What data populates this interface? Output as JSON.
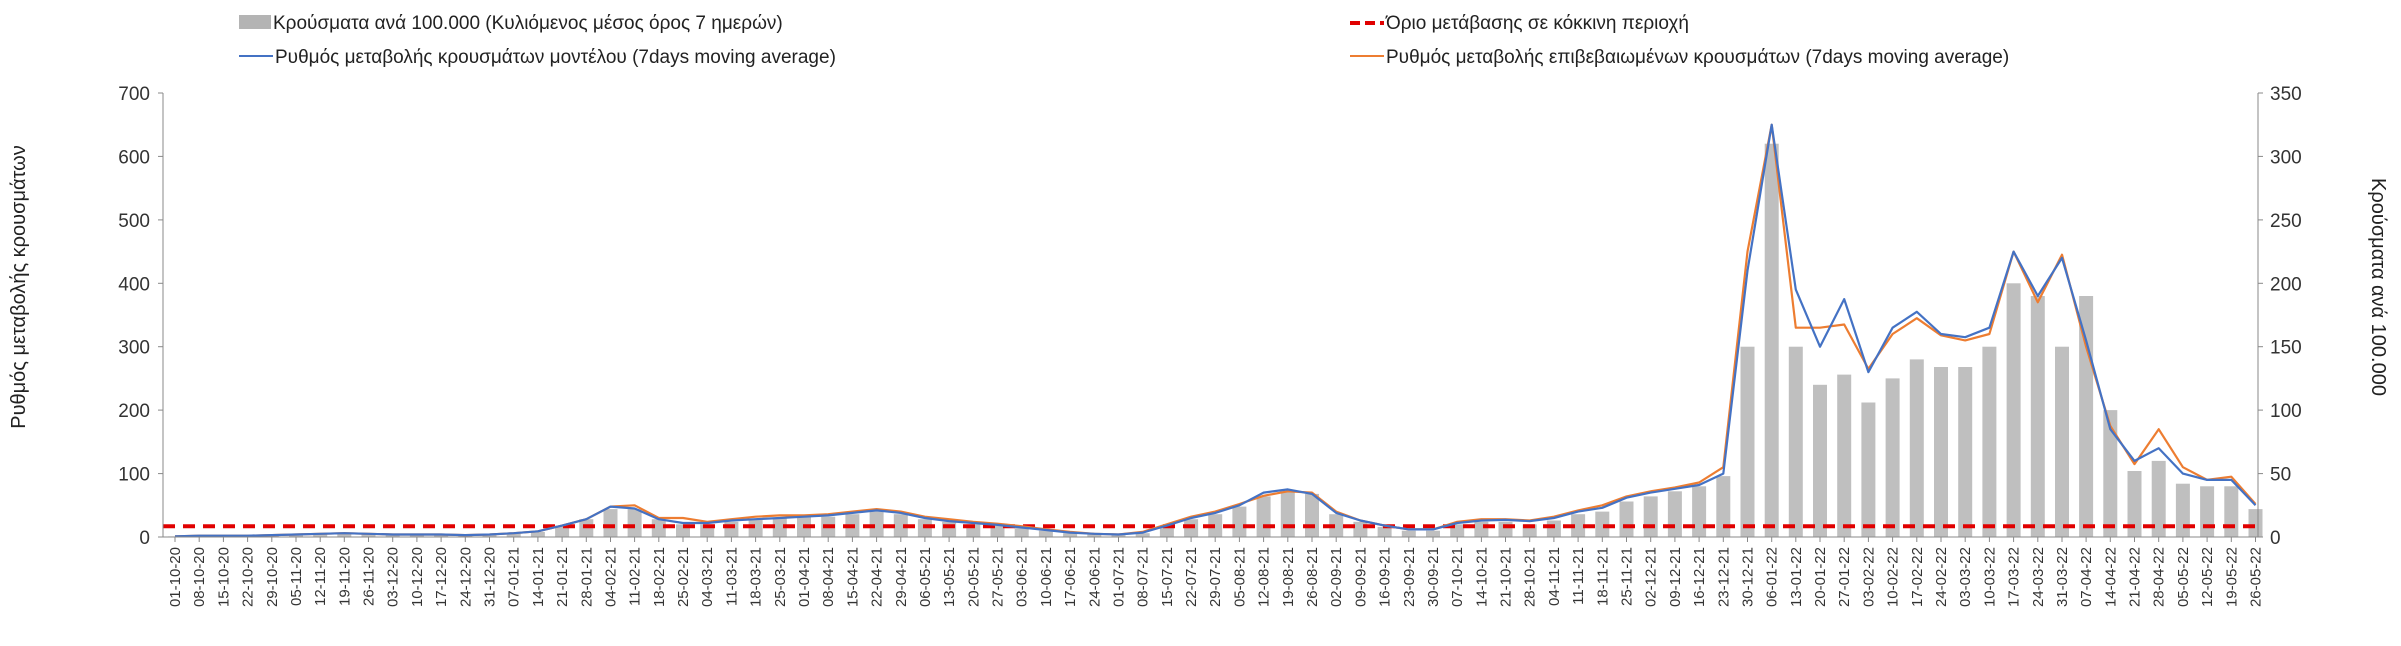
{
  "chart_data": {
    "type": "bar",
    "title": "",
    "xlabel": "",
    "ylabel_left": "Ρυθμός μεταβολής κρουσμάτων",
    "ylabel_right": "Κρούσματα ανά 100.000",
    "ylim_left": [
      0,
      700
    ],
    "ylim_right": [
      0,
      350
    ],
    "yticks_left": [
      "0",
      "100",
      "200",
      "300",
      "400",
      "500",
      "600",
      "700"
    ],
    "yticks_right": [
      "0",
      "50",
      "100",
      "150",
      "200",
      "250",
      "300",
      "350"
    ],
    "grid": false,
    "legend_placement": "top",
    "date_labels": [
      "01-10-20",
      "08-10-20",
      "15-10-20",
      "22-10-20",
      "29-10-20",
      "05-11-20",
      "12-11-20",
      "19-11-20",
      "26-11-20",
      "03-12-20",
      "10-12-20",
      "17-12-20",
      "24-12-20",
      "31-12-20",
      "07-01-21",
      "14-01-21",
      "21-01-21",
      "28-01-21",
      "04-02-21",
      "11-02-21",
      "18-02-21",
      "25-02-21",
      "04-03-21",
      "11-03-21",
      "18-03-21",
      "25-03-21",
      "01-04-21",
      "08-04-21",
      "15-04-21",
      "22-04-21",
      "29-04-21",
      "06-05-21",
      "13-05-21",
      "20-05-21",
      "27-05-21",
      "03-06-21",
      "10-06-21",
      "17-06-21",
      "24-06-21",
      "01-07-21",
      "08-07-21",
      "15-07-21",
      "22-07-21",
      "29-07-21",
      "05-08-21",
      "12-08-21",
      "19-08-21",
      "26-08-21",
      "02-09-21",
      "09-09-21",
      "16-09-21",
      "23-09-21",
      "30-09-21",
      "07-10-21",
      "14-10-21",
      "21-10-21",
      "28-10-21",
      "04-11-21",
      "11-11-21",
      "18-11-21",
      "25-11-21",
      "02-12-21",
      "09-12-21",
      "16-12-21",
      "23-12-21",
      "30-12-21",
      "06-01-22",
      "13-01-22",
      "20-01-22",
      "27-01-22",
      "03-02-22",
      "10-02-22",
      "17-02-22",
      "24-02-22",
      "03-03-22",
      "10-03-22",
      "17-03-22",
      "24-03-22",
      "31-03-22",
      "07-04-22",
      "14-04-22",
      "21-04-22",
      "28-04-22",
      "05-05-22",
      "12-05-22",
      "19-05-22",
      "26-05-22"
    ],
    "series": [
      {
        "name": "Κρούσματα ανά 100.000 (Κυλιόμενος μέσος όρος 7 ημερών)",
        "kind": "bar",
        "axis": "right",
        "color": "#b4b4b4",
        "values": [
          0.5,
          1,
          1,
          1,
          1.5,
          2,
          2,
          3,
          2,
          1.5,
          1.5,
          1.5,
          1,
          1.5,
          2.5,
          4,
          9,
          14,
          22,
          22,
          14,
          10,
          10,
          12,
          14,
          15,
          16,
          16,
          18,
          20,
          18,
          14,
          12,
          10,
          9,
          7,
          5,
          3,
          2,
          1.5,
          3,
          8,
          14,
          18,
          24,
          32,
          36,
          34,
          18,
          12,
          8,
          5,
          5,
          10,
          12,
          12,
          10,
          13,
          18,
          20,
          28,
          32,
          36,
          40,
          48,
          150,
          310,
          150,
          120,
          128,
          106,
          125,
          140,
          134,
          134,
          150,
          200,
          190,
          150,
          190,
          100,
          52,
          60,
          42,
          40,
          40,
          22
        ]
      },
      {
        "name": "Ρυθμός μεταβολής κρουσμάτων μοντέλου (7days moving average)",
        "kind": "line",
        "axis": "left",
        "color": "#4472c4",
        "values": [
          1,
          2,
          2,
          2,
          3,
          4,
          5,
          6,
          5,
          4,
          4,
          4,
          3,
          4,
          6,
          9,
          18,
          28,
          48,
          45,
          28,
          22,
          22,
          26,
          28,
          30,
          32,
          34,
          38,
          42,
          38,
          30,
          25,
          22,
          19,
          15,
          11,
          7,
          5,
          4,
          7,
          18,
          30,
          38,
          50,
          70,
          75,
          68,
          38,
          26,
          18,
          12,
          12,
          22,
          26,
          27,
          25,
          30,
          40,
          46,
          62,
          70,
          76,
          82,
          100,
          420,
          650,
          390,
          300,
          375,
          260,
          330,
          355,
          320,
          315,
          330,
          450,
          380,
          440,
          310,
          170,
          120,
          140,
          100,
          90,
          90,
          50
        ]
      },
      {
        "name": "Ρυθμός μεταβολής επιβεβαιωμένων κρουσμάτων (7days moving average)",
        "kind": "line",
        "axis": "left",
        "color": "#ed7d31",
        "values": [
          1,
          2,
          2,
          2,
          3,
          4,
          5,
          6,
          5,
          4,
          4,
          4,
          3,
          4,
          6,
          9,
          18,
          28,
          48,
          50,
          30,
          30,
          24,
          28,
          32,
          34,
          34,
          36,
          40,
          44,
          40,
          32,
          28,
          24,
          21,
          17,
          12,
          8,
          5,
          4,
          8,
          20,
          32,
          40,
          52,
          65,
          72,
          70,
          40,
          26,
          18,
          12,
          12,
          24,
          28,
          28,
          26,
          32,
          42,
          50,
          64,
          72,
          78,
          86,
          110,
          450,
          650,
          330,
          330,
          335,
          265,
          320,
          345,
          318,
          310,
          320,
          450,
          370,
          445,
          300,
          175,
          115,
          170,
          110,
          90,
          95,
          52
        ]
      },
      {
        "name": "Όριο μετάβασης σε κόκκινη περιοχή",
        "kind": "threshold",
        "axis": "left",
        "color": "#e00000",
        "value": 17
      }
    ]
  }
}
